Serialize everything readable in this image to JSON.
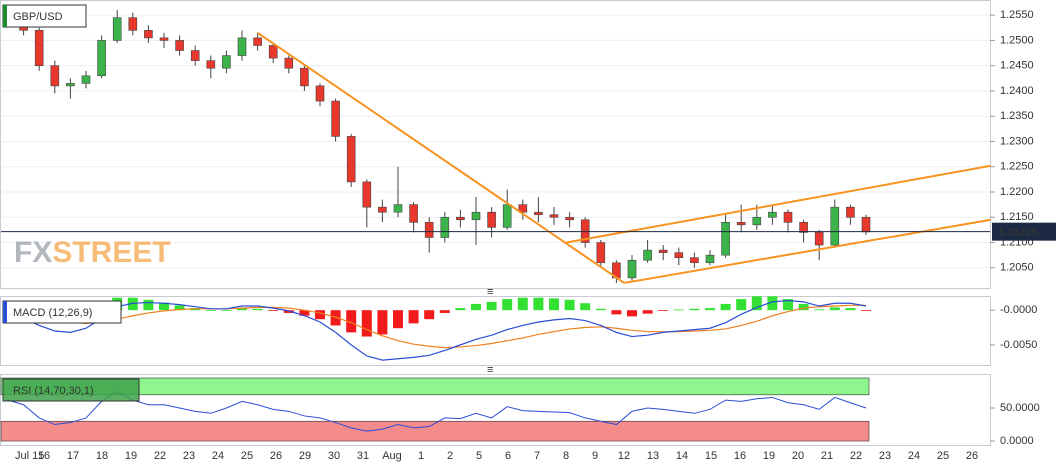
{
  "chart_data": [
    {
      "type": "candlestick",
      "title": "GBP/USD",
      "watermark": [
        "FX",
        "STREET"
      ],
      "up_color": "#3cb34a",
      "down_color": "#e8372c",
      "open": [
        1.2555,
        1.2535,
        1.252,
        1.245,
        1.241,
        1.2415,
        1.243,
        1.25,
        1.2545,
        1.252,
        1.2505,
        1.25,
        1.248,
        1.246,
        1.2445,
        1.247,
        1.2505,
        1.249,
        1.2465,
        1.2445,
        1.241,
        1.238,
        1.231,
        1.222,
        1.217,
        1.216,
        1.2175,
        1.214,
        1.211,
        1.215,
        1.2145,
        1.216,
        1.213,
        1.2175,
        1.216,
        1.2155,
        1.215,
        1.2145,
        1.21,
        1.206,
        1.203,
        1.2065,
        1.2085,
        1.208,
        1.207,
        1.206,
        1.2075,
        1.214,
        1.2135,
        1.215,
        1.216,
        1.214,
        1.212,
        1.2095,
        1.217,
        1.215
      ],
      "high": [
        1.2565,
        1.2545,
        1.2525,
        1.246,
        1.2425,
        1.244,
        1.251,
        1.256,
        1.2555,
        1.253,
        1.2515,
        1.251,
        1.249,
        1.247,
        1.248,
        1.252,
        1.2515,
        1.2495,
        1.247,
        1.245,
        1.2415,
        1.2385,
        1.2315,
        1.2225,
        1.2185,
        1.225,
        1.218,
        1.215,
        1.216,
        1.2165,
        1.219,
        1.217,
        1.2205,
        1.2185,
        1.219,
        1.217,
        1.216,
        1.215,
        1.2105,
        1.2065,
        1.2075,
        1.2105,
        1.2095,
        1.209,
        1.208,
        1.2085,
        1.2155,
        1.2175,
        1.2175,
        1.2175,
        1.2165,
        1.2145,
        1.2125,
        1.2185,
        1.2175,
        1.2155
      ],
      "low": [
        1.2525,
        1.251,
        1.244,
        1.2395,
        1.2385,
        1.2405,
        1.2425,
        1.2495,
        1.251,
        1.2495,
        1.2485,
        1.247,
        1.245,
        1.2425,
        1.2435,
        1.246,
        1.248,
        1.2455,
        1.2435,
        1.24,
        1.237,
        1.23,
        1.221,
        1.213,
        1.214,
        1.215,
        1.212,
        1.208,
        1.21,
        1.213,
        1.2095,
        1.211,
        1.2125,
        1.2145,
        1.214,
        1.2135,
        1.213,
        1.209,
        1.205,
        1.202,
        1.2025,
        1.206,
        1.2065,
        1.2055,
        1.205,
        1.2055,
        1.207,
        1.212,
        1.2125,
        1.2135,
        1.212,
        1.21,
        1.2065,
        1.209,
        1.2135,
        1.2115
      ],
      "close": [
        1.2535,
        1.252,
        1.245,
        1.241,
        1.2415,
        1.243,
        1.25,
        1.2545,
        1.252,
        1.2505,
        1.25,
        1.248,
        1.246,
        1.2445,
        1.247,
        1.2505,
        1.249,
        1.2465,
        1.2445,
        1.241,
        1.238,
        1.231,
        1.222,
        1.217,
        1.216,
        1.2175,
        1.214,
        1.211,
        1.215,
        1.2145,
        1.216,
        1.213,
        1.2175,
        1.216,
        1.2155,
        1.215,
        1.2145,
        1.21,
        1.206,
        1.203,
        1.2065,
        1.2085,
        1.208,
        1.207,
        1.206,
        1.2075,
        1.214,
        1.2135,
        1.215,
        1.216,
        1.214,
        1.212,
        1.2095,
        1.217,
        1.215,
        1.2121
      ],
      "last_price": 1.21215,
      "trendlines": [
        {
          "color": "#f7931e",
          "points": [
            [
              16,
              1.2515
            ],
            [
              39.5,
              1.202
            ]
          ]
        },
        {
          "color": "#f7931e",
          "points": [
            [
              39.5,
              1.202
            ],
            [
              63,
              1.2145
            ]
          ]
        },
        {
          "color": "#f7931e",
          "points": [
            [
              35.8,
              1.21
            ],
            [
              63,
              1.2252
            ]
          ]
        }
      ],
      "ylim": [
        1.201,
        1.258
      ],
      "yticks": [
        {
          "value": 1.205,
          "label": "1.2050"
        },
        {
          "value": 1.21,
          "label": "1.2100"
        },
        {
          "value": 1.215,
          "label": "1.2150"
        },
        {
          "value": 1.22,
          "label": "1.2200"
        },
        {
          "value": 1.225,
          "label": "1.2250"
        },
        {
          "value": 1.23,
          "label": "1.2300"
        },
        {
          "value": 1.235,
          "label": "1.2350"
        },
        {
          "value": 1.24,
          "label": "1.2400"
        },
        {
          "value": 1.245,
          "label": "1.2450"
        },
        {
          "value": 1.25,
          "label": "1.2500"
        },
        {
          "value": 1.255,
          "label": "1.2550"
        }
      ],
      "grid": true,
      "xtick_labels": [
        "Jul 15",
        "16",
        "17",
        "18",
        "19",
        "22",
        "23",
        "24",
        "25",
        "26",
        "29",
        "30",
        "31",
        "Aug",
        "1",
        "2",
        "5",
        "6",
        "7",
        "8",
        "9",
        "12",
        "13",
        "14",
        "15",
        "16",
        "19",
        "20",
        "21",
        "22",
        "23",
        "24",
        "25",
        "26"
      ]
    },
    {
      "type": "macd",
      "legend": "MACD (12,26,9)",
      "macd_color": "#2b4ed6",
      "signal_color": "#f07f1e",
      "pos_color": "#33e033",
      "neg_color": "#f21b1b",
      "macd": [
        -0.0005,
        -0.0012,
        -0.0022,
        -0.003,
        -0.0032,
        -0.0026,
        -0.0012,
        0.0005,
        0.001,
        0.0011,
        0.001,
        0.0008,
        0.0005,
        0.0002,
        0.0002,
        0.0006,
        0.0006,
        0.0003,
        -0.0001,
        -0.0008,
        -0.0017,
        -0.0032,
        -0.005,
        -0.0066,
        -0.0072,
        -0.007,
        -0.0068,
        -0.0065,
        -0.0058,
        -0.005,
        -0.0042,
        -0.0036,
        -0.0028,
        -0.0022,
        -0.0017,
        -0.0014,
        -0.0012,
        -0.0015,
        -0.0022,
        -0.0032,
        -0.0038,
        -0.0036,
        -0.0032,
        -0.003,
        -0.0028,
        -0.0026,
        -0.0018,
        -0.0006,
        0.0004,
        0.0012,
        0.0014,
        0.0012,
        0.0006,
        0.001,
        0.001,
        0.0006
      ],
      "signal": [
        -0.0002,
        -0.0005,
        -0.0009,
        -0.0014,
        -0.0017,
        -0.0019,
        -0.0018,
        -0.0013,
        -0.0008,
        -0.0004,
        -0.0001,
        0.0001,
        0.0002,
        0.0002,
        0.0002,
        0.0003,
        0.0004,
        0.0004,
        0.0003,
        0.0,
        -0.0004,
        -0.001,
        -0.0018,
        -0.0028,
        -0.0037,
        -0.0044,
        -0.0049,
        -0.0052,
        -0.0054,
        -0.0053,
        -0.0051,
        -0.0048,
        -0.0044,
        -0.004,
        -0.0035,
        -0.0031,
        -0.0027,
        -0.0025,
        -0.0024,
        -0.0026,
        -0.0029,
        -0.0031,
        -0.0031,
        -0.0031,
        -0.003,
        -0.0029,
        -0.0027,
        -0.0022,
        -0.0016,
        -0.0008,
        -0.0002,
        0.0003,
        0.0005,
        0.0006,
        0.0007,
        0.0007
      ],
      "histogram": [
        -0.0003,
        -0.0007,
        -0.0013,
        -0.0016,
        -0.0015,
        -0.0007,
        0.0006,
        0.0018,
        0.0018,
        0.0015,
        0.0011,
        0.0007,
        0.0003,
        0.0,
        0.0,
        0.0003,
        0.0002,
        -0.0001,
        -0.0004,
        -0.0008,
        -0.0013,
        -0.0022,
        -0.0032,
        -0.0038,
        -0.0035,
        -0.0026,
        -0.0019,
        -0.0013,
        -0.0004,
        0.0003,
        0.0009,
        0.0012,
        0.0016,
        0.0018,
        0.0018,
        0.0017,
        0.0015,
        0.001,
        0.0002,
        -0.0006,
        -0.0009,
        -0.0005,
        -0.0001,
        0.0001,
        0.0002,
        0.0003,
        0.0009,
        0.0016,
        0.002,
        0.002,
        0.0016,
        0.0009,
        0.0001,
        0.0004,
        0.0003,
        -0.0001
      ],
      "ylim": [
        -0.0079,
        0.0019
      ],
      "yticks": [
        {
          "value": 0,
          "label": "-0.0000"
        },
        {
          "value": -0.005,
          "label": "-0.0050"
        }
      ]
    },
    {
      "type": "rsi",
      "legend": "RSI (14,70,30,1)",
      "color": "#2b4ed6",
      "upper_band": 70,
      "lower_band": 30,
      "upper_color": "#8ff58f",
      "lower_color": "#f58c8c",
      "values": [
        62,
        55,
        35,
        25,
        28,
        35,
        60,
        75,
        62,
        55,
        55,
        50,
        45,
        42,
        50,
        60,
        55,
        48,
        45,
        38,
        35,
        28,
        20,
        15,
        18,
        25,
        20,
        22,
        35,
        34,
        42,
        35,
        52,
        46,
        45,
        44,
        43,
        35,
        30,
        25,
        45,
        50,
        48,
        45,
        42,
        48,
        62,
        60,
        64,
        66,
        58,
        55,
        48,
        66,
        58,
        50
      ],
      "ylim": [
        -6,
        100
      ],
      "yticks": [
        {
          "value": 50,
          "label": "50.0000"
        },
        {
          "value": 0,
          "label": "0.0000"
        }
      ]
    }
  ]
}
